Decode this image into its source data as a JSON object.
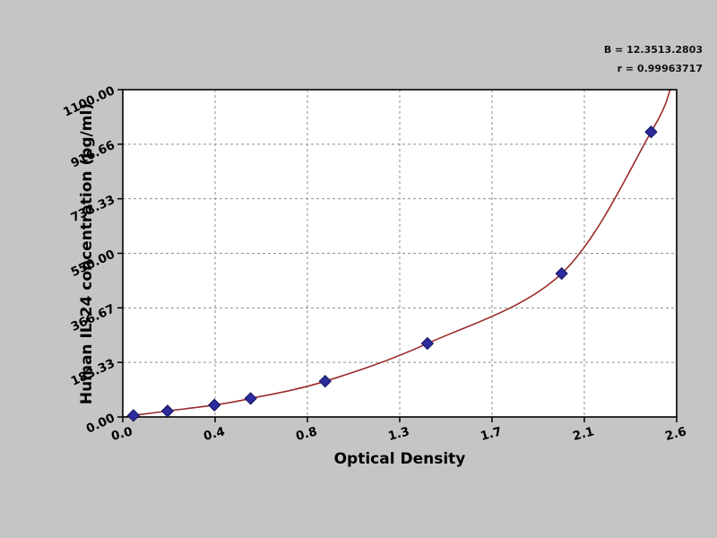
{
  "figure": {
    "annotation": {
      "line1": "B = 12.3513.2803",
      "line2": "r = 0.99963717"
    }
  },
  "chart_data": {
    "type": "scatter",
    "title": "",
    "xlabel": "Optical Density",
    "ylabel": "Human IL-24 concentration (pg/ml)",
    "xlim": [
      0,
      2.6
    ],
    "ylim": [
      0,
      1100
    ],
    "x_tick_labels": [
      "0.0",
      "0.4",
      "0.8",
      "1.3",
      "1.7",
      "2.1",
      "2.6"
    ],
    "y_tick_labels": [
      "0.00",
      "183.33",
      "366.67",
      "550.00",
      "733.33",
      "916.66",
      "1100.00"
    ],
    "grid": "dashed",
    "legend": "none",
    "points": {
      "series": "standards",
      "marker": "diamond",
      "color": "#2b2b9c",
      "x": [
        0.05,
        0.21,
        0.43,
        0.6,
        0.95,
        1.43,
        2.06,
        2.48
      ],
      "y": [
        5,
        20,
        40,
        62,
        120,
        247,
        482,
        958
      ]
    },
    "fit_curve": {
      "series": "fit-curve",
      "color": "#9b2a2a",
      "start": [
        0.01,
        0
      ],
      "end": [
        2.57,
        1100
      ]
    },
    "colors": {
      "plot_background": "#ffffff",
      "page_background": "#c5c5c5",
      "grid": "#8f8f8f",
      "frame": "#000000",
      "marker_stroke": "#15155e"
    }
  }
}
